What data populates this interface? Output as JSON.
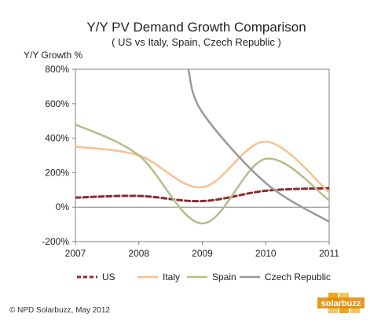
{
  "chart_data": {
    "type": "line",
    "title": "Y/Y PV Demand Growth Comparison",
    "subtitle": "( US vs Italy, Spain, Czech Republic )",
    "ylabel": "Y/Y Growth %",
    "xlabel": "",
    "x": [
      2007,
      2008,
      2009,
      2010,
      2011
    ],
    "x_tick_labels": [
      "2007",
      "2008",
      "2009",
      "2010",
      "2011"
    ],
    "ylim": [
      -200,
      800
    ],
    "y_ticks": [
      -200,
      0,
      200,
      400,
      600,
      800
    ],
    "y_tick_labels": [
      "-200%",
      "0%",
      "200%",
      "400%",
      "600%",
      "800%"
    ],
    "grid": false,
    "legend_position": "bottom",
    "series": [
      {
        "name": "US",
        "color": "#8b2a2a",
        "dash": "dashed",
        "x": [
          2007,
          2008,
          2009,
          2010,
          2011
        ],
        "values": [
          55,
          65,
          35,
          95,
          110
        ]
      },
      {
        "name": "Italy",
        "color": "#f5c190",
        "dash": "solid",
        "x": [
          2007,
          2008,
          2009,
          2010,
          2011
        ],
        "values": [
          350,
          300,
          115,
          380,
          85
        ]
      },
      {
        "name": "Spain",
        "color": "#b5bd8a",
        "dash": "solid",
        "x": [
          2007,
          2008,
          2009,
          2010,
          2011
        ],
        "values": [
          480,
          300,
          -95,
          280,
          40
        ]
      },
      {
        "name": "Czech Republic",
        "color": "#9a9a9a",
        "dash": "solid",
        "x": [
          2008.78,
          2009,
          2010,
          2011
        ],
        "values": [
          800,
          550,
          140,
          -85
        ]
      }
    ]
  },
  "footer": {
    "copyright": "© NPD Solarbuzz, May 2012",
    "logo_text": "solarbuzz"
  }
}
